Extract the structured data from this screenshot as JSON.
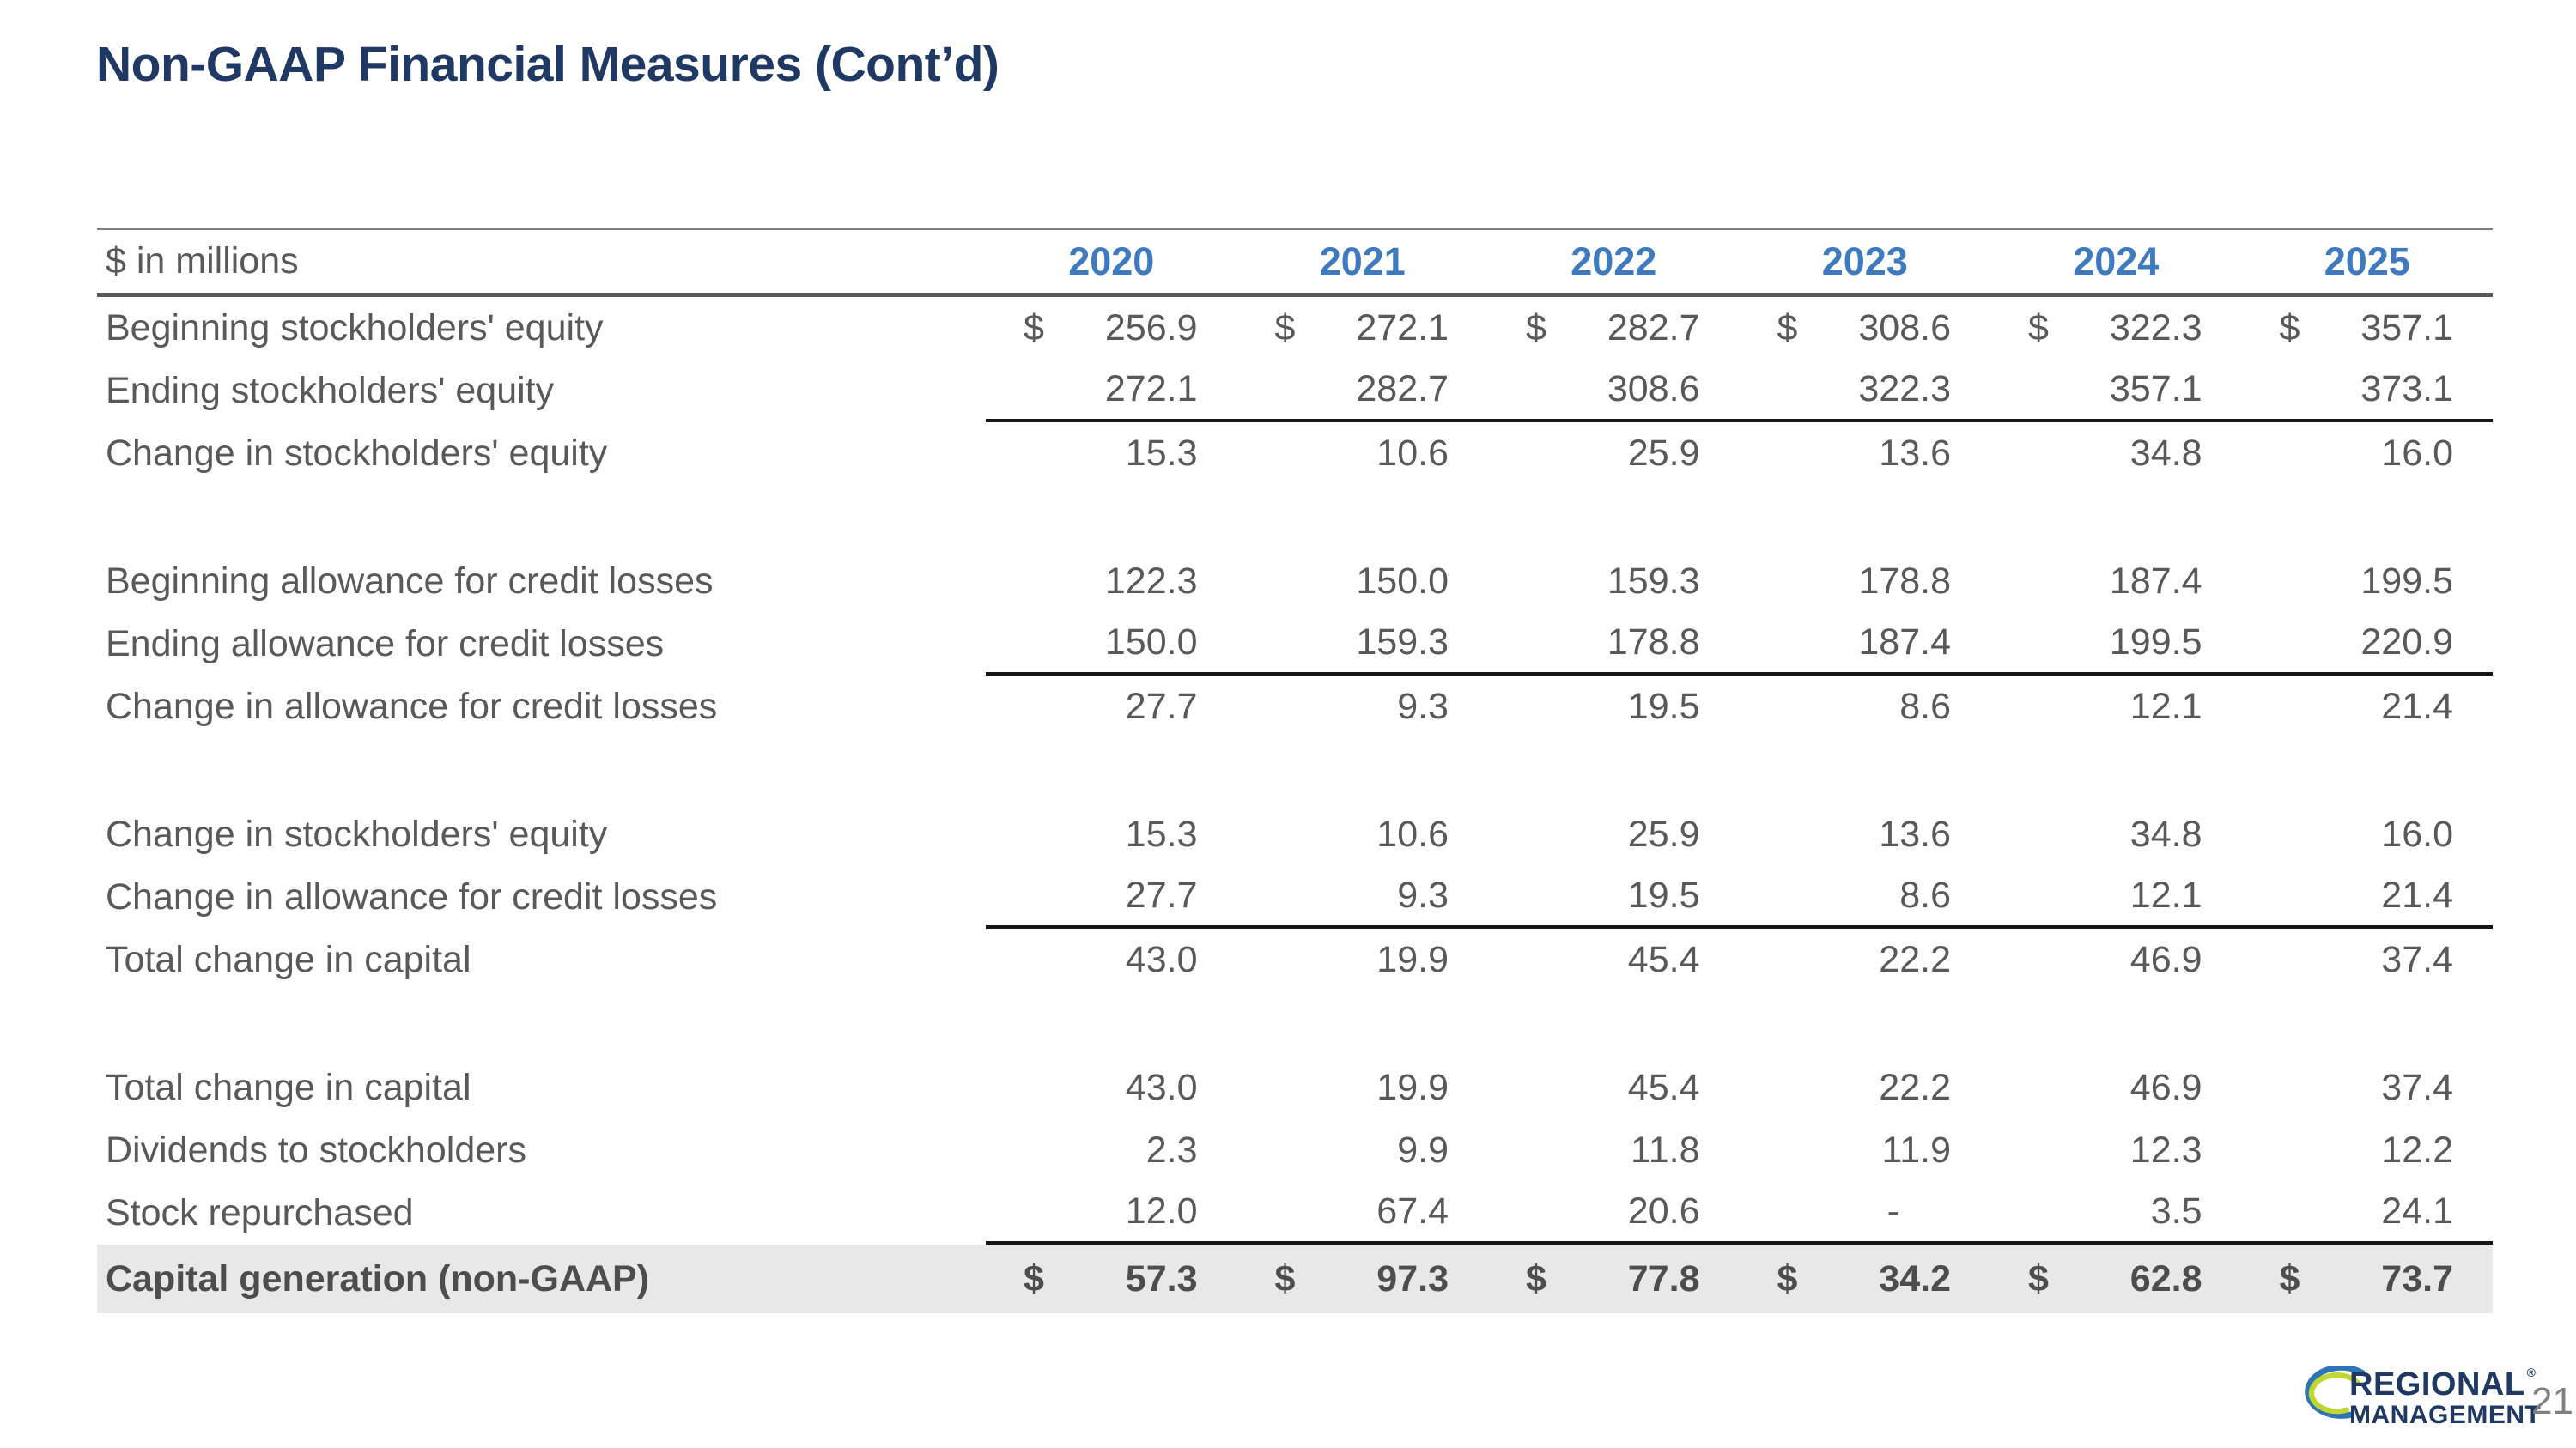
{
  "title": "Non-GAAP Financial Measures (Cont’d)",
  "table": {
    "unit_label": "$ in millions",
    "years": [
      "2020",
      "2021",
      "2022",
      "2023",
      "2024",
      "2025"
    ],
    "sections": [
      {
        "rows": [
          {
            "label": "Beginning stockholders' equity",
            "dollar": true,
            "underline": false,
            "values": [
              "256.9",
              "272.1",
              "282.7",
              "308.6",
              "322.3",
              "357.1"
            ]
          },
          {
            "label": "Ending stockholders' equity",
            "dollar": false,
            "underline": true,
            "values": [
              "272.1",
              "282.7",
              "308.6",
              "322.3",
              "357.1",
              "373.1"
            ]
          },
          {
            "label": "Change in stockholders' equity",
            "dollar": false,
            "underline": false,
            "values": [
              "15.3",
              "10.6",
              "25.9",
              "13.6",
              "34.8",
              "16.0"
            ]
          }
        ]
      },
      {
        "rows": [
          {
            "label": "Beginning allowance for credit losses",
            "dollar": false,
            "underline": false,
            "values": [
              "122.3",
              "150.0",
              "159.3",
              "178.8",
              "187.4",
              "199.5"
            ]
          },
          {
            "label": "Ending allowance for credit losses",
            "dollar": false,
            "underline": true,
            "values": [
              "150.0",
              "159.3",
              "178.8",
              "187.4",
              "199.5",
              "220.9"
            ]
          },
          {
            "label": "Change in allowance for credit losses",
            "dollar": false,
            "underline": false,
            "values": [
              "27.7",
              "9.3",
              "19.5",
              "8.6",
              "12.1",
              "21.4"
            ]
          }
        ]
      },
      {
        "rows": [
          {
            "label": "Change in stockholders' equity",
            "dollar": false,
            "underline": false,
            "values": [
              "15.3",
              "10.6",
              "25.9",
              "13.6",
              "34.8",
              "16.0"
            ]
          },
          {
            "label": "Change in allowance for credit losses",
            "dollar": false,
            "underline": true,
            "values": [
              "27.7",
              "9.3",
              "19.5",
              "8.6",
              "12.1",
              "21.4"
            ]
          },
          {
            "label": "Total change in capital",
            "dollar": false,
            "underline": false,
            "values": [
              "43.0",
              "19.9",
              "45.4",
              "22.2",
              "46.9",
              "37.4"
            ]
          }
        ]
      },
      {
        "rows": [
          {
            "label": "Total change in capital",
            "dollar": false,
            "underline": false,
            "values": [
              "43.0",
              "19.9",
              "45.4",
              "22.2",
              "46.9",
              "37.4"
            ]
          },
          {
            "label": "Dividends to stockholders",
            "dollar": false,
            "underline": false,
            "values": [
              "2.3",
              "9.9",
              "11.8",
              "11.9",
              "12.3",
              "12.2"
            ]
          },
          {
            "label": "Stock repurchased",
            "dollar": false,
            "underline": true,
            "values": [
              "12.0",
              "67.4",
              "20.6",
              "-",
              "3.5",
              "24.1"
            ]
          }
        ]
      }
    ],
    "total_row": {
      "label": "Capital generation (non-GAAP)",
      "dollar": true,
      "values": [
        "57.3",
        "97.3",
        "77.8",
        "34.2",
        "62.8",
        "73.7"
      ]
    }
  },
  "footer": {
    "logo_line1": "REGIONAL",
    "logo_line2": "MANAGEMENT",
    "logo_reg_mark": "®",
    "page_number": "21"
  },
  "colors": {
    "title_navy": "#1F3864",
    "year_blue": "#3D7AC0",
    "body_gray": "#595959",
    "highlight_bg": "#E8E8E8",
    "rule_thin": "#7F7F7F",
    "rule_thick": "#595959",
    "underline_black": "#161616",
    "logo_navy": "#1F3864",
    "logo_swoosh_blue": "#2E75B6",
    "logo_swoosh_green": "#BFD730",
    "page_number_gray": "#808080"
  }
}
